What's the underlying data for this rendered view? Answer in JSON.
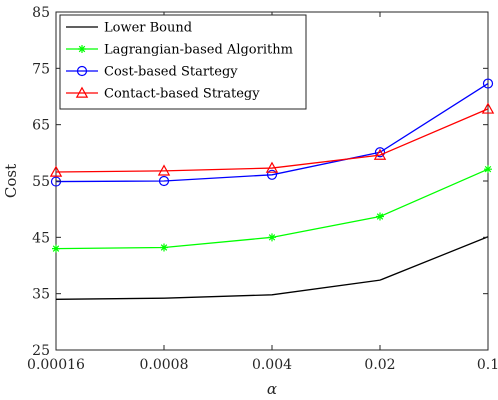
{
  "chart_data": {
    "type": "line",
    "xlabel": "α",
    "ylabel": "Cost",
    "categories": [
      "0.00016",
      "0.0008",
      "0.004",
      "0.02",
      "0.1"
    ],
    "ylim": [
      25,
      85
    ],
    "yticks": [
      25,
      35,
      45,
      55,
      65,
      75,
      85
    ],
    "grid": false,
    "legend_position": "top-left",
    "series": [
      {
        "name": "Lower Bound",
        "color": "#000000",
        "marker": "none",
        "values": [
          34.0,
          34.2,
          34.8,
          37.4,
          45.1
        ]
      },
      {
        "name": "Lagrangian-based Algorithm",
        "color": "#00ff00",
        "marker": "asterisk",
        "values": [
          43.0,
          43.2,
          45.0,
          48.7,
          57.1
        ]
      },
      {
        "name": "Cost-based Startegy",
        "color": "#0000ff",
        "marker": "circle",
        "values": [
          54.9,
          55.0,
          56.1,
          60.1,
          72.3
        ]
      },
      {
        "name": "Contact-based Strategy",
        "color": "#ff0000",
        "marker": "triangle",
        "values": [
          56.6,
          56.8,
          57.3,
          59.6,
          67.8
        ]
      }
    ]
  }
}
